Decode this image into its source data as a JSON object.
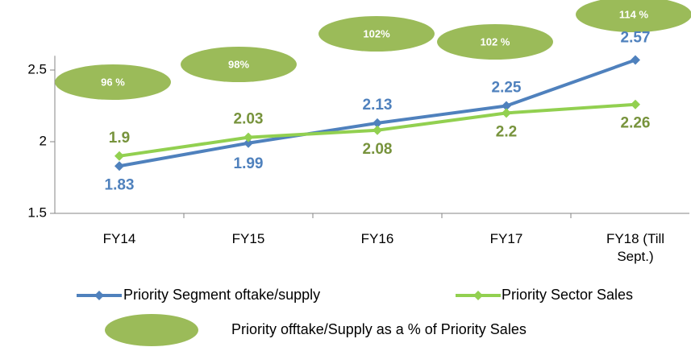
{
  "chart_data": {
    "type": "line",
    "categories": [
      "FY14",
      "FY15",
      "FY16",
      "FY17",
      "FY18 (Till Sept.)"
    ],
    "series": [
      {
        "name": "Priority Segment oftake/supply",
        "color": "#4f81bd",
        "label_color": "#4f81bd",
        "values": [
          1.83,
          1.99,
          2.13,
          2.25,
          2.57
        ]
      },
      {
        "name": "Priority Sector Sales",
        "color": "#92d050",
        "label_color": "#77933c",
        "values": [
          1.9,
          2.03,
          2.08,
          2.2,
          2.26
        ]
      }
    ],
    "ylim": [
      1.5,
      2.6
    ],
    "yticks": [
      1.5,
      2,
      2.5
    ],
    "annotations": [
      "96 %",
      "98%",
      "102%",
      "102 %",
      "114 %"
    ],
    "annotation_color": "#9bbb59",
    "annotation_legend": "Priority offtake/Supply as a % of Priority Sales"
  }
}
